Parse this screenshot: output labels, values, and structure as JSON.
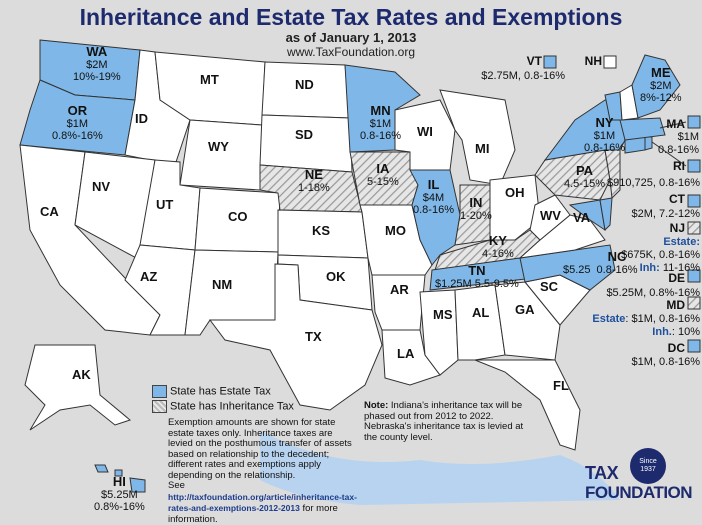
{
  "header": {
    "title": "Inheritance and Estate Tax Rates and Exemptions",
    "date": "as of January 1, 2013",
    "url": "www.TaxFoundation.org"
  },
  "colors": {
    "estate": "#7fb8e8",
    "inheritance_hatch": "#b8b8b8",
    "none": "#ffffff",
    "border": "#333333",
    "water": "#b7d3ef",
    "brand": "#1d2a6e"
  },
  "states": {
    "WA": {
      "abbr": "WA",
      "line1": "$2M",
      "line2": "10%-19%",
      "type": "estate"
    },
    "OR": {
      "abbr": "OR",
      "line1": "$1M",
      "line2": "0.8%-16%",
      "type": "estate"
    },
    "MN": {
      "abbr": "MN",
      "line1": "$1M",
      "line2": "0.8-16%",
      "type": "estate"
    },
    "IL": {
      "abbr": "IL",
      "line1": "$4M",
      "line2": "0.8-16%",
      "type": "estate"
    },
    "NE": {
      "abbr": "NE",
      "line1": "1-18%",
      "type": "inheritance"
    },
    "IA": {
      "abbr": "IA",
      "line1": "5-15%",
      "type": "inheritance"
    },
    "IN": {
      "abbr": "IN",
      "line1": "1-20%",
      "type": "inheritance"
    },
    "KY": {
      "abbr": "KY",
      "line1": "4-16%",
      "type": "inheritance"
    },
    "PA": {
      "abbr": "PA",
      "line1": "4.5-15%",
      "type": "inheritance"
    },
    "TN": {
      "abbr": "TN",
      "line1": "$1.25M 5.5-9.5%",
      "type": "estate"
    },
    "NC": {
      "abbr": "NC",
      "line1": "$5.25",
      "line2": "0.8-16%",
      "type": "estate"
    },
    "NY": {
      "abbr": "NY",
      "line1": "$1M",
      "line2": "0.8-16%",
      "type": "estate"
    },
    "ME": {
      "abbr": "ME",
      "line1": "$2M",
      "line2": "8%-12%",
      "type": "estate"
    },
    "MT": {
      "abbr": "MT"
    },
    "ND": {
      "abbr": "ND"
    },
    "SD": {
      "abbr": "SD"
    },
    "ID": {
      "abbr": "ID"
    },
    "WY": {
      "abbr": "WY"
    },
    "NV": {
      "abbr": "NV"
    },
    "CA": {
      "abbr": "CA"
    },
    "UT": {
      "abbr": "UT"
    },
    "CO": {
      "abbr": "CO"
    },
    "AZ": {
      "abbr": "AZ"
    },
    "NM": {
      "abbr": "NM"
    },
    "KS": {
      "abbr": "KS"
    },
    "OK": {
      "abbr": "OK"
    },
    "TX": {
      "abbr": "TX"
    },
    "MO": {
      "abbr": "MO"
    },
    "AR": {
      "abbr": "AR"
    },
    "LA": {
      "abbr": "LA"
    },
    "MS": {
      "abbr": "MS"
    },
    "AL": {
      "abbr": "AL"
    },
    "GA": {
      "abbr": "GA"
    },
    "FL": {
      "abbr": "FL"
    },
    "SC": {
      "abbr": "SC"
    },
    "WI": {
      "abbr": "WI"
    },
    "MI": {
      "abbr": "MI"
    },
    "OH": {
      "abbr": "OH"
    },
    "WV": {
      "abbr": "WV"
    },
    "VA": {
      "abbr": "VA"
    },
    "AK": {
      "abbr": "AK"
    },
    "HI": {
      "abbr": "HI",
      "line1": "$5.25M",
      "line2": "0.8%-16%",
      "type": "estate"
    }
  },
  "side": {
    "VT": {
      "abbr": "VT",
      "line1": "$2.75M, 0.8-16%",
      "type": "estate"
    },
    "NH": {
      "abbr": "NH",
      "type": "none"
    },
    "MA": {
      "abbr": "MA",
      "line1": "$1M",
      "line2": "0.8-16%",
      "type": "estate"
    },
    "RI": {
      "abbr": "RI",
      "line1": "$910,725, 0.8-16%",
      "type": "estate"
    },
    "CT": {
      "abbr": "CT",
      "line1": "$2M, 7.2-12%",
      "type": "estate"
    },
    "NJ": {
      "abbr": "NJ",
      "estate_label": "Estate:",
      "estate": "$675K, 0.8-16%",
      "inh_label": "Inh:",
      "inh": "11-16%",
      "type": "both"
    },
    "DE": {
      "abbr": "DE",
      "line1": "$5.25M, 0.8%-16%",
      "type": "estate"
    },
    "MD": {
      "abbr": "MD",
      "estate_label": "Estate",
      "estate": ": $1M, 0.8-16%",
      "inh_label": "Inh.",
      "inh": ": 10%",
      "type": "both"
    },
    "DC": {
      "abbr": "DC",
      "line1": "$1M, 0.8-16%",
      "type": "estate"
    }
  },
  "legend": {
    "estate": "State has Estate Tax",
    "inheritance": "State has Inheritance Tax",
    "explanation": "Exemption amounts are shown for state estate taxes only. Inheritance taxes are levied on the posthumous transfer of assets based on relationship to the decedent; different rates and exemptions apply depending on the relationship.",
    "see": "See",
    "link": "http://taxfoundation.org/article/inheritance-tax-rates-and-exemptions-2012-2013",
    "more": "for more information."
  },
  "note": {
    "label": "Note:",
    "text": "Indiana's inheritance tax will be phased out from 2012 to 2022. Nebraska's inheritance tax is levied at the county level."
  },
  "logo": {
    "line1": "TAX",
    "line2": "FOUNDATION",
    "seal1": "Since",
    "seal2": "1937"
  }
}
